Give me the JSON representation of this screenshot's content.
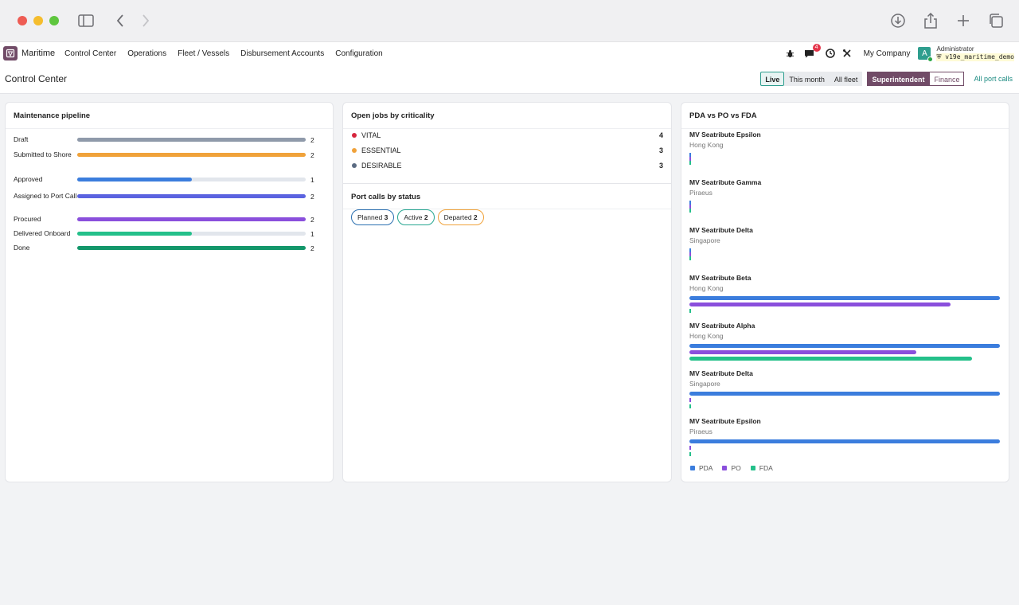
{
  "navbar": {
    "app_name": "Maritime",
    "menu": [
      "Control Center",
      "Operations",
      "Fleet / Vessels",
      "Disbursement Accounts",
      "Configuration"
    ],
    "message_badge": "4",
    "company": "My Company",
    "avatar_letter": "A",
    "user": "Administrator",
    "database": "v19e_maritime_demo"
  },
  "control_panel": {
    "title": "Control Center",
    "filters": [
      "Live",
      "This month",
      "All fleet"
    ],
    "roles": [
      "Superintendent",
      "Finance"
    ],
    "all_port_calls": "All port calls"
  },
  "maintenance": {
    "title": "Maintenance pipeline",
    "max": 2,
    "rows": [
      {
        "label": "Draft",
        "count": 2,
        "color": "#8f9aaa"
      },
      {
        "label": "Submitted to Shore",
        "count": 2,
        "color": "#f0a23a"
      },
      {
        "label": "Approved",
        "count": 1,
        "color": "#3b7ddd"
      },
      {
        "label": "Assigned to Port Call",
        "count": 2,
        "color": "#5b63e0"
      },
      {
        "label": "Procured",
        "count": 2,
        "color": "#8a4fdc"
      },
      {
        "label": "Delivered Onboard",
        "count": 1,
        "color": "#24c08a"
      },
      {
        "label": "Done",
        "count": 2,
        "color": "#13976a"
      }
    ]
  },
  "criticality": {
    "title": "Open jobs by criticality",
    "rows": [
      {
        "label": "VITAL",
        "count": "4",
        "color": "#d6263d"
      },
      {
        "label": "ESSENTIAL",
        "count": "3",
        "color": "#f0a23a"
      },
      {
        "label": "DESIRABLE",
        "count": "3",
        "color": "#5b6b82"
      }
    ]
  },
  "port_calls": {
    "title": "Port calls by status",
    "statuses": [
      {
        "label": "Planned",
        "count": "3",
        "color": "#2a6fb0"
      },
      {
        "label": "Active",
        "count": "2",
        "color": "#26a690"
      },
      {
        "label": "Departed",
        "count": "2",
        "color": "#f0a23a"
      }
    ]
  },
  "finance": {
    "title": "PDA vs PO vs FDA",
    "colors": {
      "pda": "#3b7ddd",
      "po": "#8a4fdc",
      "fda": "#24c08a"
    },
    "vessels": [
      {
        "name": "MV Seatribute Epsilon",
        "port": "Hong Kong",
        "pda": 0,
        "po": 0,
        "fda": 0
      },
      {
        "name": "MV Seatribute Gamma",
        "port": "Piraeus",
        "pda": 0,
        "po": 0,
        "fda": 0
      },
      {
        "name": "MV Seatribute Delta",
        "port": "Singapore",
        "pda": 0,
        "po": 0,
        "fda": 0
      },
      {
        "name": "MV Seatribute Beta",
        "port": "Hong Kong",
        "pda": 1.0,
        "po": 0.84,
        "fda": 0
      },
      {
        "name": "MV Seatribute Alpha",
        "port": "Hong Kong",
        "pda": 1.0,
        "po": 0.73,
        "fda": 0.91
      },
      {
        "name": "MV Seatribute Delta",
        "port": "Singapore",
        "pda": 1.0,
        "po": 0,
        "fda": 0
      },
      {
        "name": "MV Seatribute Epsilon",
        "port": "Piraeus",
        "pda": 1.0,
        "po": 0,
        "fda": 0
      }
    ],
    "legend": [
      "PDA",
      "PO",
      "FDA"
    ]
  }
}
